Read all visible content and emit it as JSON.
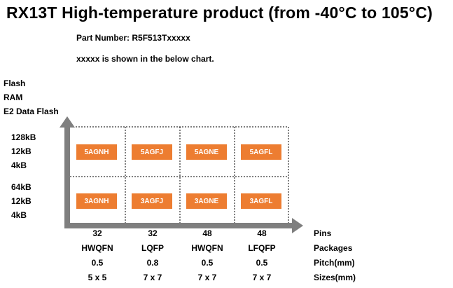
{
  "title": "RX13T  High-temperature product (from -40°C to 105°C)",
  "part_number": "Part Number: R5F513Txxxxx",
  "note": "xxxxx is shown in the below chart.",
  "y_axis_labels": [
    "Flash",
    "RAM",
    "E2 Data Flash"
  ],
  "rows": [
    {
      "flash": "128kB",
      "ram": "12kB",
      "e2": "4kB",
      "codes": [
        "5AGNH",
        "5AGFJ",
        "5AGNE",
        "5AGFL"
      ]
    },
    {
      "flash": "64kB",
      "ram": "12kB",
      "e2": "4kB",
      "codes": [
        "3AGNH",
        "3AGFJ",
        "3AGNE",
        "3AGFL"
      ]
    }
  ],
  "columns": [
    {
      "pins": "32",
      "package": "HWQFN",
      "pitch": "0.5",
      "size": "5 x 5"
    },
    {
      "pins": "32",
      "package": "LQFP",
      "pitch": "0.8",
      "size": "7 x 7"
    },
    {
      "pins": "48",
      "package": "HWQFN",
      "pitch": "0.5",
      "size": "7 x 7"
    },
    {
      "pins": "48",
      "package": "LFQFP",
      "pitch": "0.5",
      "size": "7 x 7"
    }
  ],
  "row_names": [
    "Pins",
    "Packages",
    "Pitch(mm)",
    "Sizes(mm)"
  ],
  "colors": {
    "badge": "#ed7d31",
    "axis": "#7f7f7f"
  }
}
